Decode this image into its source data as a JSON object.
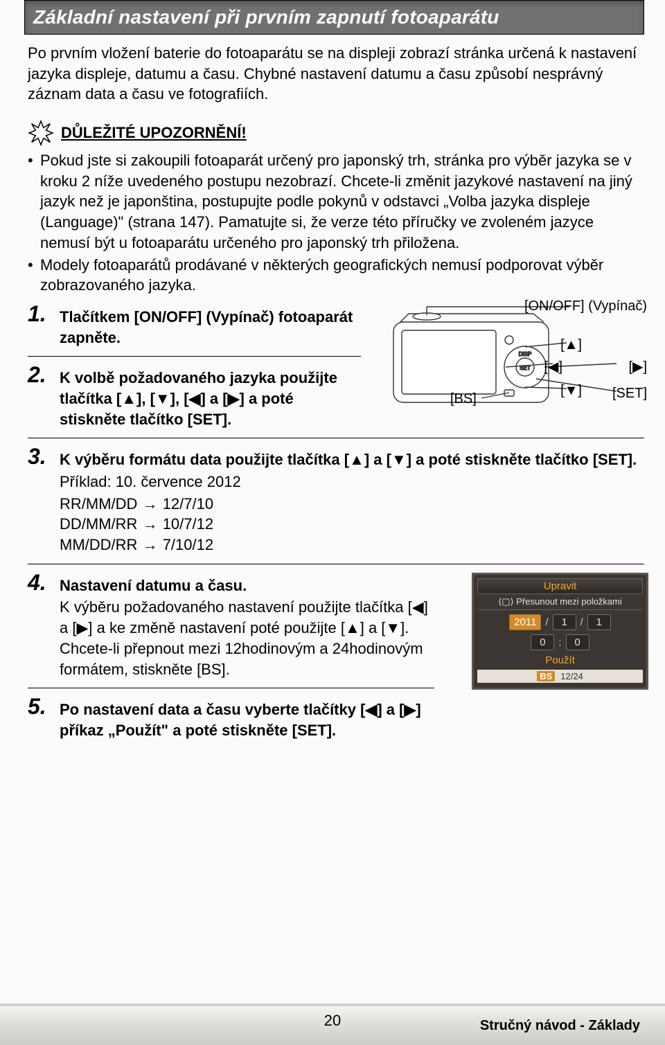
{
  "title": "Základní nastavení při prvním zapnutí fotoaparátu",
  "intro": "Po prvním vložení baterie do fotoaparátu se na displeji zobrazí stránka určená k nastavení jazyka displeje, datumu a času. Chybné nastavení datumu a času způsobí nesprávný záznam data a času ve fotografiích.",
  "notice_title": "DŮLEŽITÉ UPOZORNĚNÍ!",
  "bullet1": "Pokud jste si zakoupili fotoaparát určený pro japonský trh, stránka pro výběr jazyka se v kroku 2 níže uvedeného postupu nezobrazí. Chcete-li změnit jazykové nastavení na jiný jazyk než je japonština, postupujte podle pokynů v odstavci „Volba jazyka displeje (Language)\" (strana 147). Pamatujte si, že verze této příručky ve zvoleném jazyce nemusí být u fotoaparátu určeného pro japonský trh přiložena.",
  "bullet2": "Modely fotoaparátů prodávané v některých geografických nemusí podporovat výběr zobrazovaného jazyka.",
  "camera": {
    "onoff_label": "[ON/OFF] (Vypínač)",
    "up": "[▲]",
    "left": "[◀]",
    "right": "[▶]",
    "down": "[▼]",
    "bs": "[BS]",
    "set": "[SET]",
    "disp": "DISP",
    "set_btn": "SET"
  },
  "step1": "Tlačítkem [ON/OFF] (Vypínač) fotoaparát zapněte.",
  "step2": "K volbě požadovaného jazyka použijte tlačítka [▲], [▼], [◀] a [▶] a poté stiskněte tlačítko [SET].",
  "step3_head": "K výběru formátu data použijte tlačítka [▲] a [▼] a poté stiskněte tlačítko [SET].",
  "step3_example_label": "Příklad: 10. července 2012",
  "step3_rows": [
    {
      "fmt": "RR/MM/DD",
      "val": "12/7/10"
    },
    {
      "fmt": "DD/MM/RR",
      "val": "10/7/12"
    },
    {
      "fmt": "MM/DD/RR",
      "val": "7/10/12"
    }
  ],
  "step4_head": "Nastavení datumu a času.",
  "step4_body": "K výběru požadovaného nastavení použijte tlačítka [◀] a [▶] a ke změně nastavení poté použijte [▲] a [▼]. Chcete-li přepnout mezi 12hodinovým a 24hodinovým formátem, stiskněte [BS].",
  "step5": "Po nastavení data a času vyberte tlačítky [◀] a [▶] příkaz „Použít\" a poté stiskněte [SET].",
  "lcd": {
    "header": "Upravit",
    "sub_prefix": "⟨▢⟩",
    "sub": "Přesunout mezi položkami",
    "year": "2011",
    "m": "1",
    "d": "1",
    "h": "0",
    "min": "0",
    "use": "Použít",
    "bs": "BS",
    "mode": "12/24"
  },
  "page_num": "20",
  "footer": "Stručný návod - Základy"
}
